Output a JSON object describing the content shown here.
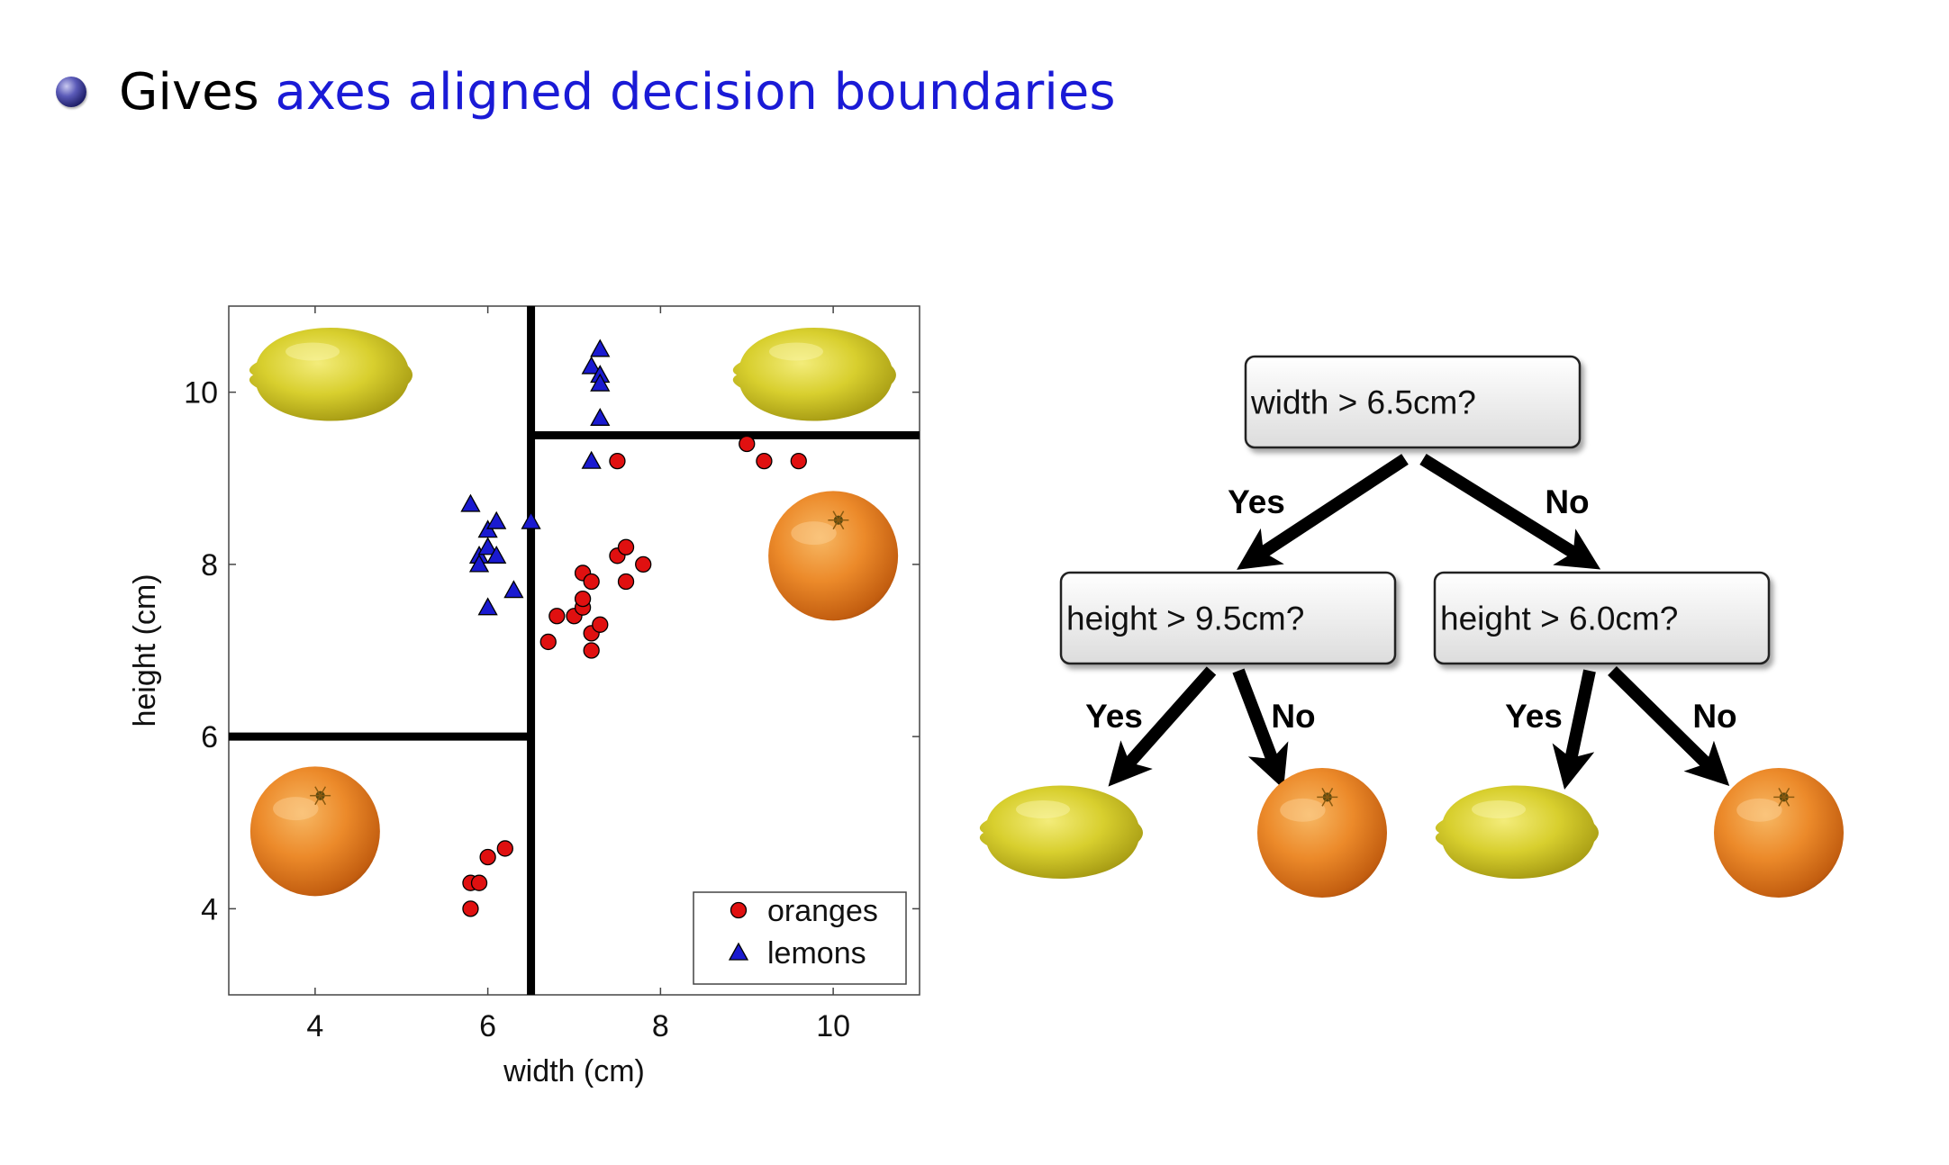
{
  "bullet": {
    "lead": "Gives",
    "highlight": "axes aligned decision boundaries",
    "highlight_color": "#1a1ad6"
  },
  "chart_data": {
    "type": "scatter",
    "xlabel": "width (cm)",
    "ylabel": "height (cm)",
    "xlim": [
      3,
      11
    ],
    "ylim": [
      3,
      11
    ],
    "xticks": [
      4,
      6,
      8,
      10
    ],
    "yticks": [
      4,
      6,
      8,
      10
    ],
    "grid": false,
    "legend_position": "bottom-right",
    "series": [
      {
        "name": "oranges",
        "marker": "circle",
        "color": "#e01010",
        "points": [
          [
            5.8,
            4.0
          ],
          [
            5.8,
            4.3
          ],
          [
            5.9,
            4.3
          ],
          [
            6.0,
            4.6
          ],
          [
            6.2,
            4.7
          ],
          [
            6.7,
            7.1
          ],
          [
            6.8,
            7.4
          ],
          [
            7.0,
            7.4
          ],
          [
            7.1,
            7.5
          ],
          [
            7.1,
            7.6
          ],
          [
            7.1,
            7.9
          ],
          [
            7.2,
            7.8
          ],
          [
            7.2,
            7.2
          ],
          [
            7.2,
            7.0
          ],
          [
            7.3,
            7.3
          ],
          [
            7.5,
            8.1
          ],
          [
            7.6,
            8.2
          ],
          [
            7.6,
            7.8
          ],
          [
            7.8,
            8.0
          ],
          [
            7.5,
            9.2
          ],
          [
            9.0,
            9.4
          ],
          [
            9.2,
            9.2
          ],
          [
            9.6,
            9.2
          ]
        ]
      },
      {
        "name": "lemons",
        "marker": "triangle",
        "color": "#1a1ad0",
        "points": [
          [
            5.8,
            8.7
          ],
          [
            5.9,
            8.1
          ],
          [
            5.9,
            8.0
          ],
          [
            6.0,
            8.4
          ],
          [
            6.0,
            8.2
          ],
          [
            6.0,
            7.5
          ],
          [
            6.1,
            8.5
          ],
          [
            6.1,
            8.1
          ],
          [
            6.3,
            7.7
          ],
          [
            6.5,
            8.5
          ],
          [
            7.2,
            9.2
          ],
          [
            7.2,
            10.3
          ],
          [
            7.3,
            10.5
          ],
          [
            7.3,
            10.2
          ],
          [
            7.3,
            10.1
          ],
          [
            7.3,
            9.7
          ]
        ]
      }
    ],
    "decision_boundaries": [
      {
        "orientation": "vertical",
        "x": 6.5,
        "y_range": [
          3,
          11
        ]
      },
      {
        "orientation": "horizontal",
        "y": 9.5,
        "x_range": [
          6.5,
          11
        ]
      },
      {
        "orientation": "horizontal",
        "y": 6.0,
        "x_range": [
          3,
          6.5
        ]
      }
    ],
    "region_images": [
      {
        "fruit": "lemon",
        "at": [
          4.2,
          10.2
        ]
      },
      {
        "fruit": "lemon",
        "at": [
          9.8,
          10.2
        ]
      },
      {
        "fruit": "orange",
        "at": [
          10.0,
          8.1
        ]
      },
      {
        "fruit": "orange",
        "at": [
          4.0,
          4.9
        ]
      }
    ]
  },
  "tree": {
    "root": {
      "question": "width > 6.5cm?"
    },
    "left": {
      "question": "height > 9.5cm?"
    },
    "right": {
      "question": "height > 6.0cm?"
    },
    "edges": {
      "root_left": "Yes",
      "root_right": "No",
      "left_left": "Yes",
      "left_right": "No",
      "right_left": "Yes",
      "right_right": "No"
    },
    "leaves": [
      "lemon",
      "orange",
      "lemon",
      "orange"
    ]
  }
}
